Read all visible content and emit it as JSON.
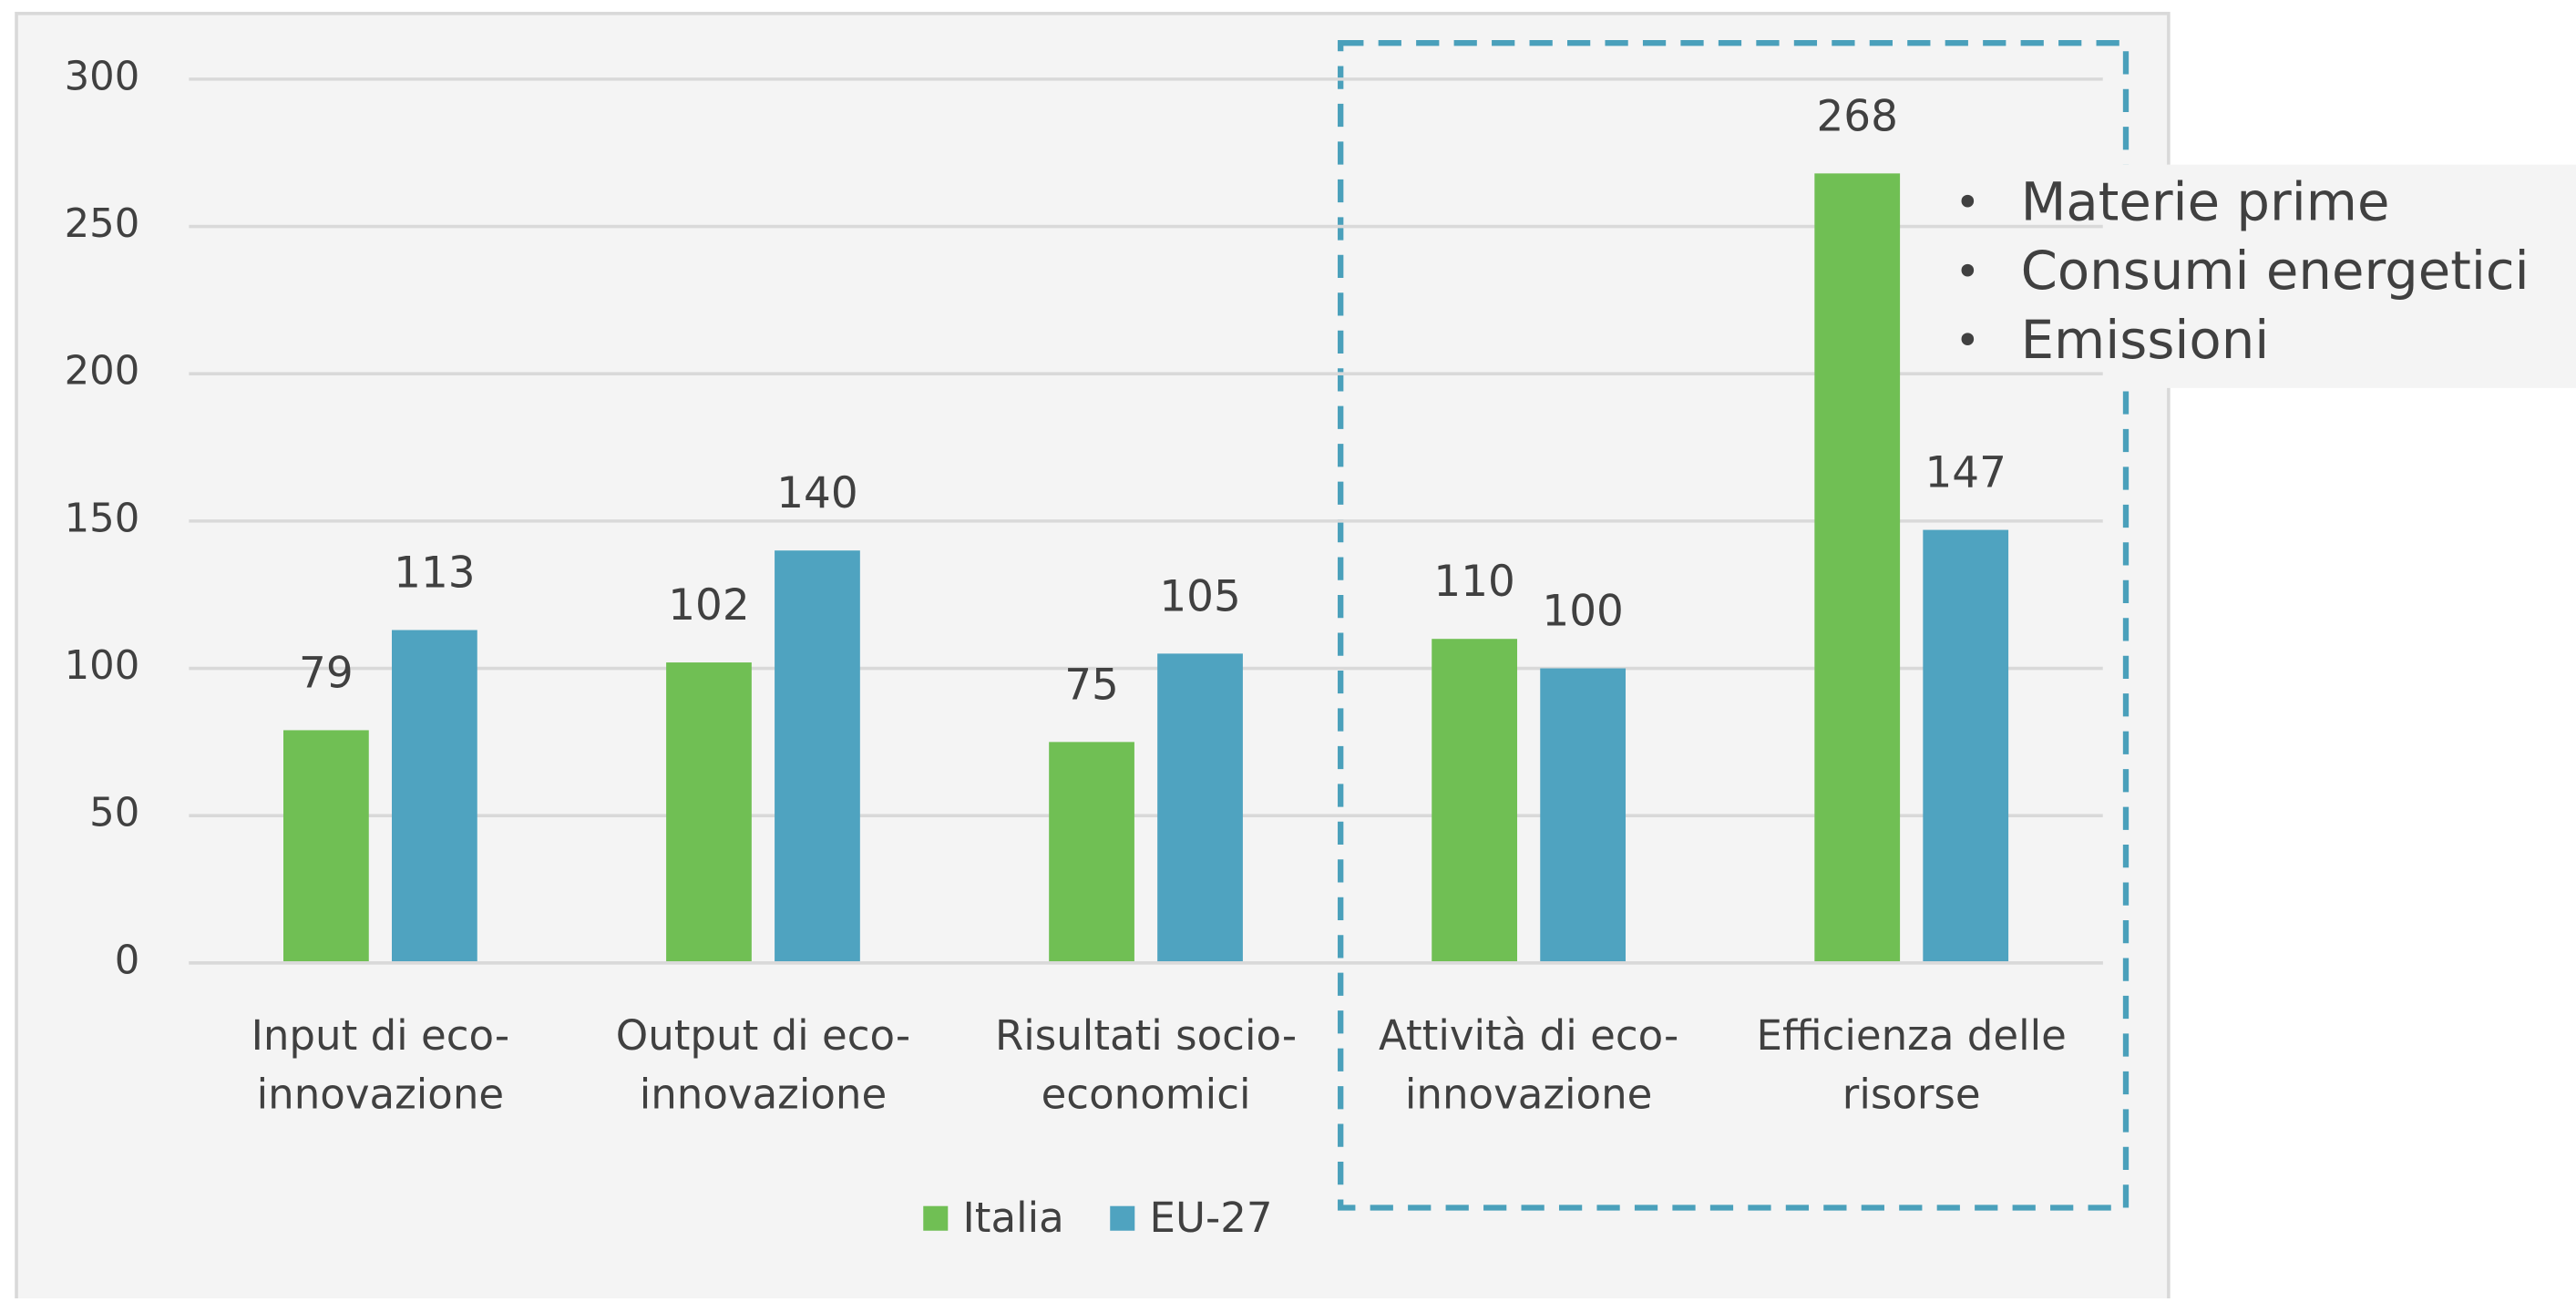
{
  "chart_data": {
    "type": "bar",
    "categories": [
      "Input di eco-\ninnovazione",
      "Output di eco-\ninnovazione",
      "Risultati socio-\neconomici",
      "Attività di eco-\ninnovazione",
      "Efficienza delle\nrisorse"
    ],
    "series": [
      {
        "name": "Italia",
        "color": "#70bf54",
        "values": [
          79,
          102,
          75,
          110,
          268
        ]
      },
      {
        "name": "EU-27",
        "color": "#4fa3c0",
        "values": [
          113,
          140,
          105,
          100,
          147
        ]
      }
    ],
    "ylim": [
      0,
      300
    ],
    "yticks": [
      0,
      50,
      100,
      150,
      200,
      250,
      300
    ],
    "grid": true,
    "legend": "bottom",
    "annotations": [
      "Materie prime",
      "Consumi energetici",
      "Emissioni"
    ]
  }
}
